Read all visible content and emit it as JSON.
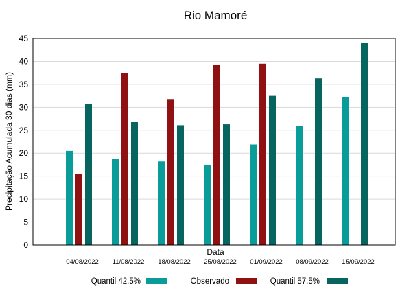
{
  "chart_data": {
    "type": "bar",
    "title": "Rio Mamoré",
    "xlabel": "Data",
    "ylabel": "Precipitação Acumulada 30 dias (mm)",
    "ylim": [
      0,
      45
    ],
    "yticks": [
      0,
      5,
      10,
      15,
      20,
      25,
      30,
      35,
      40,
      45
    ],
    "grid": true,
    "legend_position": "bottom",
    "categories": [
      "04/08/2022",
      "11/08/2022",
      "18/08/2022",
      "25/08/2022",
      "01/09/2022",
      "08/09/2022",
      "15/09/2022"
    ],
    "series": [
      {
        "name": "Quantil 42.5%",
        "color": "#0a9c98",
        "values": [
          20.5,
          18.7,
          18.2,
          17.5,
          21.9,
          25.9,
          32.2
        ]
      },
      {
        "name": "Observado",
        "color": "#8f1111",
        "values": [
          15.5,
          37.5,
          31.8,
          39.2,
          39.5,
          null,
          null
        ]
      },
      {
        "name": "Quantil 57.5%",
        "color": "#06655f",
        "values": [
          30.8,
          26.9,
          26.1,
          26.3,
          32.5,
          36.3,
          44.1
        ]
      }
    ]
  }
}
